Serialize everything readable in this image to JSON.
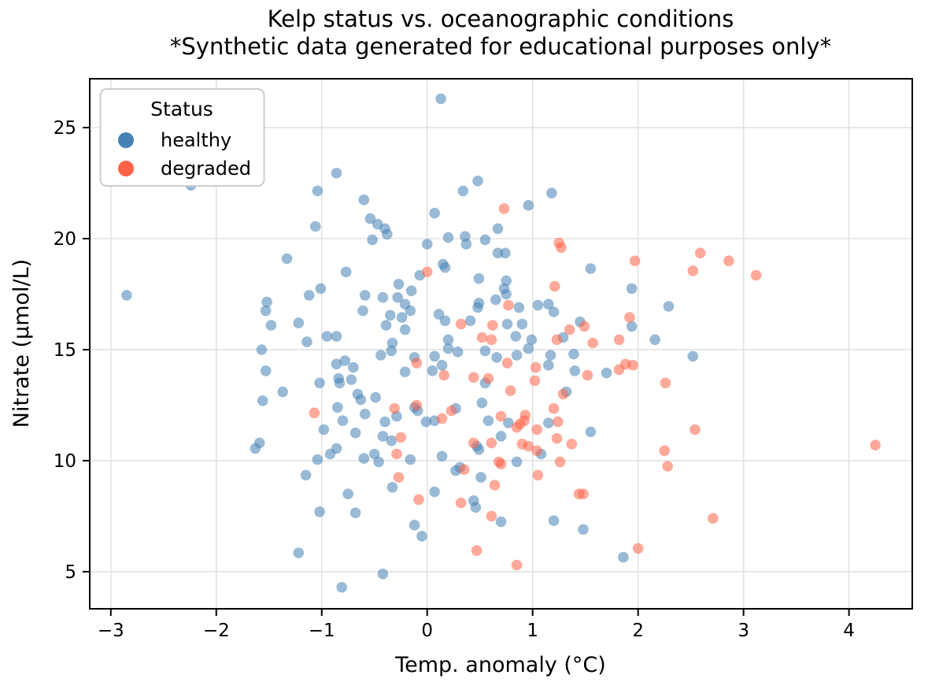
{
  "title": {
    "line1": "Kelp status vs. oceanographic conditions",
    "line2": "*Synthetic data generated for educational purposes only*"
  },
  "axes": {
    "xlabel": "Temp. anomaly (°C)",
    "ylabel": "Nitrate (μmol/L)",
    "xlim": [
      -3.2,
      4.6
    ],
    "ylim": [
      3.33,
      27.2
    ],
    "xticks": [
      -3,
      -2,
      -1,
      0,
      1,
      2,
      3,
      4
    ],
    "yticks": [
      5,
      10,
      15,
      20,
      25
    ],
    "xtick_labels": [
      "−3",
      "−2",
      "−1",
      "0",
      "1",
      "2",
      "3",
      "4"
    ],
    "ytick_labels": [
      "5",
      "10",
      "15",
      "20",
      "25"
    ],
    "grid": true
  },
  "legend": {
    "title": "Status",
    "position": "upper left",
    "items": [
      {
        "label": "healthy",
        "color": "#4682B4"
      },
      {
        "label": "degraded",
        "color": "#FF6347"
      }
    ]
  },
  "style": {
    "healthy_color": "#4682B4",
    "degraded_color": "#FF6347",
    "point_alpha": 0.55,
    "point_radius": 6.8,
    "grid_color": "#e2e2e2",
    "spine_color": "#000000",
    "background": "#ffffff"
  },
  "chart_data": {
    "type": "scatter",
    "title": "Kelp status vs. oceanographic conditions\n*Synthetic data generated for educational purposes only*",
    "xlabel": "Temp. anomaly (°C)",
    "ylabel": "Nitrate (μmol/L)",
    "xlim": [
      -3.2,
      4.6
    ],
    "ylim": [
      3.33,
      27.2
    ],
    "legend_position": "upper left",
    "grid": true,
    "series": [
      {
        "name": "healthy",
        "color": "#4682B4",
        "points": [
          [
            -2.24,
            22.4
          ],
          [
            -2.85,
            17.45
          ],
          [
            -1.04,
            22.15
          ],
          [
            -0.86,
            22.95
          ],
          [
            -0.6,
            21.75
          ],
          [
            -1.06,
            20.55
          ],
          [
            -1.33,
            19.1
          ],
          [
            -0.77,
            18.5
          ],
          [
            -0.61,
            16.75
          ],
          [
            -1.01,
            17.75
          ],
          [
            -1.12,
            17.45
          ],
          [
            -1.52,
            17.15
          ],
          [
            -1.53,
            16.75
          ],
          [
            -1.48,
            16.1
          ],
          [
            -1.22,
            16.2
          ],
          [
            -0.95,
            15.6
          ],
          [
            -0.86,
            15.6
          ],
          [
            -1.14,
            15.35
          ],
          [
            0.13,
            26.3
          ],
          [
            0.48,
            22.6
          ],
          [
            0.34,
            22.15
          ],
          [
            1.18,
            22.05
          ],
          [
            0.96,
            21.5
          ],
          [
            0.07,
            21.15
          ],
          [
            -0.54,
            20.9
          ],
          [
            -0.47,
            20.65
          ],
          [
            -0.4,
            20.45
          ],
          [
            -0.38,
            20.2
          ],
          [
            -0.52,
            19.95
          ],
          [
            0.67,
            20.45
          ],
          [
            0.2,
            20.05
          ],
          [
            0.36,
            20.1
          ],
          [
            0.37,
            19.75
          ],
          [
            0.55,
            19.95
          ],
          [
            0,
            19.75
          ],
          [
            0.67,
            19.35
          ],
          [
            0.74,
            19.35
          ],
          [
            1.55,
            18.65
          ],
          [
            0.15,
            18.85
          ],
          [
            0.17,
            18.7
          ],
          [
            -0.07,
            18.35
          ],
          [
            -0.27,
            17.95
          ],
          [
            -0.15,
            17.65
          ],
          [
            0.49,
            18.2
          ],
          [
            0.75,
            18.1
          ],
          [
            0.73,
            17.75
          ],
          [
            0.75,
            17.5
          ],
          [
            0.65,
            17.25
          ],
          [
            1.94,
            17.75
          ],
          [
            -0.28,
            17.35
          ],
          [
            -0.42,
            17.35
          ],
          [
            -0.59,
            17.45
          ],
          [
            0.49,
            17.1
          ],
          [
            0.48,
            16.9
          ],
          [
            0.87,
            16.9
          ],
          [
            1.05,
            17
          ],
          [
            1.15,
            17.05
          ],
          [
            1.2,
            16.7
          ],
          [
            -0.21,
            17.05
          ],
          [
            -0.16,
            16.75
          ],
          [
            -0.35,
            16.55
          ],
          [
            -0.24,
            16.45
          ],
          [
            0.11,
            16.6
          ],
          [
            0.17,
            16.3
          ],
          [
            0.41,
            16.3
          ],
          [
            0.76,
            16.15
          ],
          [
            0.9,
            16.15
          ],
          [
            -0.39,
            16.1
          ],
          [
            -0.21,
            15.9
          ],
          [
            1.45,
            16.25
          ],
          [
            1.94,
            16.05
          ],
          [
            -0.33,
            15.3
          ],
          [
            0.2,
            15.45
          ],
          [
            0.84,
            15.6
          ],
          [
            0.99,
            15.45
          ],
          [
            1.29,
            15.55
          ],
          [
            2.29,
            16.95
          ],
          [
            2.16,
            15.45
          ],
          [
            2.52,
            14.7
          ],
          [
            -1.57,
            15
          ],
          [
            -0.86,
            14.35
          ],
          [
            -0.78,
            14.5
          ],
          [
            -0.7,
            14.2
          ],
          [
            -0.84,
            13.7
          ],
          [
            -0.83,
            13.5
          ],
          [
            -0.72,
            13.65
          ],
          [
            -1.02,
            13.5
          ],
          [
            -1.37,
            13.1
          ],
          [
            -1.56,
            12.7
          ],
          [
            -0.98,
            11.4
          ],
          [
            -0.8,
            11.8
          ],
          [
            -0.66,
            13
          ],
          [
            -0.63,
            12.75
          ],
          [
            -0.85,
            12.4
          ],
          [
            -0.68,
            11.25
          ],
          [
            -1.63,
            10.55
          ],
          [
            -1.59,
            10.8
          ],
          [
            -0.92,
            10.3
          ],
          [
            -1.04,
            10.05
          ],
          [
            -0.86,
            10.55
          ],
          [
            -0.6,
            10.1
          ],
          [
            -1.15,
            9.35
          ],
          [
            -0.75,
            8.5
          ],
          [
            -1.02,
            7.7
          ],
          [
            -0.68,
            7.65
          ],
          [
            -1.22,
            5.85
          ],
          [
            -0.81,
            4.3
          ],
          [
            -1.53,
            14.05
          ],
          [
            -0.34,
            14.95
          ],
          [
            -0.44,
            14.75
          ],
          [
            -0.12,
            14.65
          ],
          [
            0.07,
            14.7
          ],
          [
            0.2,
            15.05
          ],
          [
            0.29,
            14.9
          ],
          [
            0.55,
            14.95
          ],
          [
            0.66,
            14.65
          ],
          [
            0.85,
            14.75
          ],
          [
            0.96,
            15.05
          ],
          [
            1.15,
            14.3
          ],
          [
            1.17,
            14.75
          ],
          [
            1.39,
            14.8
          ],
          [
            1.4,
            14.05
          ],
          [
            1.7,
            13.95
          ],
          [
            -0.21,
            14
          ],
          [
            0.05,
            14.05
          ],
          [
            0.14,
            14.3
          ],
          [
            0.55,
            13.5
          ],
          [
            -0.49,
            12.85
          ],
          [
            -0.59,
            12.1
          ],
          [
            -0.4,
            11.75
          ],
          [
            -0.29,
            12
          ],
          [
            -0.12,
            12.4
          ],
          [
            -0.09,
            12.25
          ],
          [
            -0.01,
            11.75
          ],
          [
            0.07,
            11.8
          ],
          [
            0.27,
            12.35
          ],
          [
            0.52,
            12.6
          ],
          [
            0.58,
            11.8
          ],
          [
            0.77,
            11.7
          ],
          [
            1.15,
            11.7
          ],
          [
            1.32,
            13.1
          ],
          [
            1.55,
            11.3
          ],
          [
            1.08,
            10.3
          ],
          [
            0.47,
            10.65
          ],
          [
            0.49,
            10.5
          ],
          [
            0.7,
            11.1
          ],
          [
            -0.34,
            10.9
          ],
          [
            -0.42,
            11.1
          ],
          [
            -0.5,
            10.3
          ],
          [
            -0.46,
            9.95
          ],
          [
            -0.16,
            10.05
          ],
          [
            0.14,
            10.2
          ],
          [
            0.85,
            9.95
          ],
          [
            0.31,
            9.7
          ],
          [
            0.27,
            9.55
          ],
          [
            -0.33,
            8.8
          ],
          [
            0.07,
            8.6
          ],
          [
            0.51,
            9.25
          ],
          [
            0.44,
            8.2
          ],
          [
            0.46,
            7.9
          ],
          [
            0.7,
            7.25
          ],
          [
            1.2,
            7.3
          ],
          [
            1.48,
            6.9
          ],
          [
            -0.12,
            7.1
          ],
          [
            -0.05,
            6.6
          ],
          [
            1.86,
            5.65
          ],
          [
            -0.42,
            4.9
          ]
        ]
      },
      {
        "name": "degraded",
        "color": "#FF6347",
        "points": [
          [
            0.73,
            21.35
          ],
          [
            1.25,
            19.8
          ],
          [
            1.27,
            19.6
          ],
          [
            1.97,
            19
          ],
          [
            0,
            18.5
          ],
          [
            1.21,
            17.85
          ],
          [
            0.77,
            17
          ],
          [
            0.32,
            16.15
          ],
          [
            0.62,
            16.1
          ],
          [
            1.49,
            16.05
          ],
          [
            1.35,
            15.9
          ],
          [
            1.92,
            16.45
          ],
          [
            0.52,
            15.55
          ],
          [
            0.61,
            15.45
          ],
          [
            1.23,
            15.45
          ],
          [
            1.57,
            15.3
          ],
          [
            1.82,
            15.45
          ],
          [
            2.59,
            19.35
          ],
          [
            2.86,
            19
          ],
          [
            2.52,
            18.55
          ],
          [
            3.12,
            18.35
          ],
          [
            -1.07,
            12.15
          ],
          [
            0.76,
            14.4
          ],
          [
            1.03,
            14.2
          ],
          [
            1.52,
            13.85
          ],
          [
            1.82,
            14.1
          ],
          [
            1.88,
            14.35
          ],
          [
            1.95,
            14.3
          ],
          [
            -0.1,
            14.4
          ],
          [
            0.16,
            13.85
          ],
          [
            0.44,
            13.75
          ],
          [
            0.58,
            13.7
          ],
          [
            0.79,
            13.15
          ],
          [
            1.02,
            13.6
          ],
          [
            -0.31,
            12.35
          ],
          [
            -0.1,
            12.5
          ],
          [
            0.14,
            11.9
          ],
          [
            0.23,
            12.25
          ],
          [
            0.7,
            12
          ],
          [
            0.85,
            11.5
          ],
          [
            0.88,
            11.65
          ],
          [
            0.92,
            11.8
          ],
          [
            0.93,
            12.05
          ],
          [
            1.04,
            11.4
          ],
          [
            1.24,
            11.75
          ],
          [
            1.29,
            13
          ],
          [
            1.2,
            12.35
          ],
          [
            1.37,
            10.75
          ],
          [
            1.23,
            11
          ],
          [
            1.04,
            10.45
          ],
          [
            0.96,
            10.65
          ],
          [
            0.9,
            10.75
          ],
          [
            0.44,
            10.8
          ],
          [
            0.61,
            10.8
          ],
          [
            -0.25,
            11.05
          ],
          [
            -0.29,
            10.3
          ],
          [
            0.68,
            9.95
          ],
          [
            0.7,
            9.85
          ],
          [
            1.26,
            9.95
          ],
          [
            0.35,
            9.6
          ],
          [
            -0.27,
            9.25
          ],
          [
            0.64,
            8.9
          ],
          [
            1.05,
            9.35
          ],
          [
            -0.08,
            8.25
          ],
          [
            0.32,
            8.1
          ],
          [
            0.61,
            7.5
          ],
          [
            1.44,
            8.5
          ],
          [
            1.48,
            8.5
          ],
          [
            0.47,
            5.95
          ],
          [
            0.85,
            5.3
          ],
          [
            2,
            6.05
          ],
          [
            2.26,
            13.5
          ],
          [
            2.54,
            11.4
          ],
          [
            4.25,
            10.7
          ],
          [
            2.25,
            10.45
          ],
          [
            2.28,
            9.75
          ],
          [
            2.71,
            7.4
          ]
        ]
      }
    ]
  }
}
